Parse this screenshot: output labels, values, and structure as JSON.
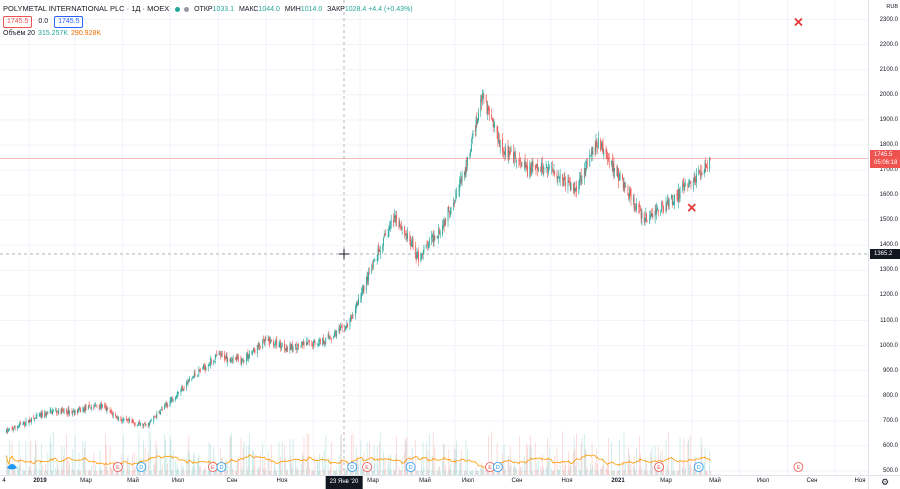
{
  "header": {
    "symbol": "POLYMETAL INTERNATIONAL PLC · 1Д · MOEX",
    "ohlc": {
      "open_label": "ОТКР",
      "open": "1033.1",
      "high_label": "МАКС",
      "high": "1044.0",
      "low_label": "МИН",
      "low": "1014.0",
      "close_label": "ЗАКР",
      "close": "1028.4",
      "change": "+4.4 (+0.43%)"
    },
    "bid": "1745.5",
    "spread": "0.0",
    "ask": "1745.5",
    "volume_label": "Объём 20",
    "volume_value": "315.257K",
    "volume_ma": "290.928K"
  },
  "price_scale": {
    "currency": "RUB",
    "ticks": [
      "2300.0",
      "2200.0",
      "2100.0",
      "2000.0",
      "1900.0",
      "1800.0",
      "1700.0",
      "1600.0",
      "1500.0",
      "1400.0",
      "1300.0",
      "1200.0",
      "1100.0",
      "1000.0",
      "900.0",
      "800.0",
      "700.0",
      "600.0",
      "500.0"
    ],
    "last_price_label": "1745.5",
    "countdown": "05:06:18",
    "crosshair_price": "1365.2"
  },
  "time_scale": {
    "labels": [
      "4",
      "2019",
      "Мар",
      "Май",
      "Июл",
      "Сен",
      "Ноя",
      "20",
      "Мар",
      "Май",
      "Июл",
      "Сен",
      "Ноя",
      "2021",
      "Мар",
      "Май",
      "Июл",
      "Сен",
      "Ноя"
    ],
    "crosshair_date": "23 Янв '20"
  },
  "events": {
    "e_label": "E",
    "d_label": "D"
  },
  "colors": {
    "up": "#26a69a",
    "down": "#ef5350",
    "volume_ma": "#ff9800",
    "last_price_line": "#ef5350",
    "crosshair": "#9598a1"
  },
  "chart_data": {
    "type": "candlestick",
    "y_axis": {
      "min": 480,
      "max": 2350,
      "unit": "RUB"
    },
    "x_range": [
      "2018-12",
      "2021-11"
    ],
    "last_price": 1745.5,
    "crosshair_price": 1365.2,
    "price_path": [
      {
        "date": "2018-12-01",
        "price": 655
      },
      {
        "date": "2019-01-01",
        "price": 700
      },
      {
        "date": "2019-02-01",
        "price": 740
      },
      {
        "date": "2019-03-01",
        "price": 735
      },
      {
        "date": "2019-04-01",
        "price": 765
      },
      {
        "date": "2019-05-01",
        "price": 700
      },
      {
        "date": "2019-06-01",
        "price": 680
      },
      {
        "date": "2019-07-01",
        "price": 780
      },
      {
        "date": "2019-08-01",
        "price": 880
      },
      {
        "date": "2019-09-01",
        "price": 960
      },
      {
        "date": "2019-10-01",
        "price": 940
      },
      {
        "date": "2019-11-01",
        "price": 1020
      },
      {
        "date": "2019-12-01",
        "price": 990
      },
      {
        "date": "2020-01-15",
        "price": 1020
      },
      {
        "date": "2020-02-15",
        "price": 1080
      },
      {
        "date": "2020-03-15",
        "price": 1300
      },
      {
        "date": "2020-04-15",
        "price": 1520
      },
      {
        "date": "2020-05-15",
        "price": 1350
      },
      {
        "date": "2020-06-15",
        "price": 1480
      },
      {
        "date": "2020-07-15",
        "price": 1700
      },
      {
        "date": "2020-08-05",
        "price": 2000
      },
      {
        "date": "2020-09-01",
        "price": 1780
      },
      {
        "date": "2020-10-01",
        "price": 1700
      },
      {
        "date": "2020-11-01",
        "price": 1710
      },
      {
        "date": "2020-12-01",
        "price": 1620
      },
      {
        "date": "2021-01-01",
        "price": 1810
      },
      {
        "date": "2021-02-01",
        "price": 1650
      },
      {
        "date": "2021-03-01",
        "price": 1500
      },
      {
        "date": "2021-04-01",
        "price": 1570
      },
      {
        "date": "2021-05-01",
        "price": 1650
      },
      {
        "date": "2021-05-25",
        "price": 1745.5
      }
    ],
    "markers": [
      {
        "type": "x",
        "date": "2021-09-15",
        "price": 2290
      },
      {
        "type": "x",
        "date": "2021-05-01",
        "price": 1550
      }
    ],
    "events": [
      {
        "kind": "E",
        "date": "2019-04-25"
      },
      {
        "kind": "D",
        "date": "2019-05-25"
      },
      {
        "kind": "E",
        "date": "2019-08-25"
      },
      {
        "kind": "D",
        "date": "2019-09-05"
      },
      {
        "kind": "D",
        "date": "2020-02-20"
      },
      {
        "kind": "E",
        "date": "2020-03-10"
      },
      {
        "kind": "D",
        "date": "2020-05-05"
      },
      {
        "kind": "E",
        "date": "2020-08-15"
      },
      {
        "kind": "D",
        "date": "2020-08-25"
      },
      {
        "kind": "E",
        "date": "2021-03-20"
      },
      {
        "kind": "D",
        "date": "2021-05-10"
      },
      {
        "kind": "E",
        "date": "2021-09-15"
      }
    ]
  }
}
